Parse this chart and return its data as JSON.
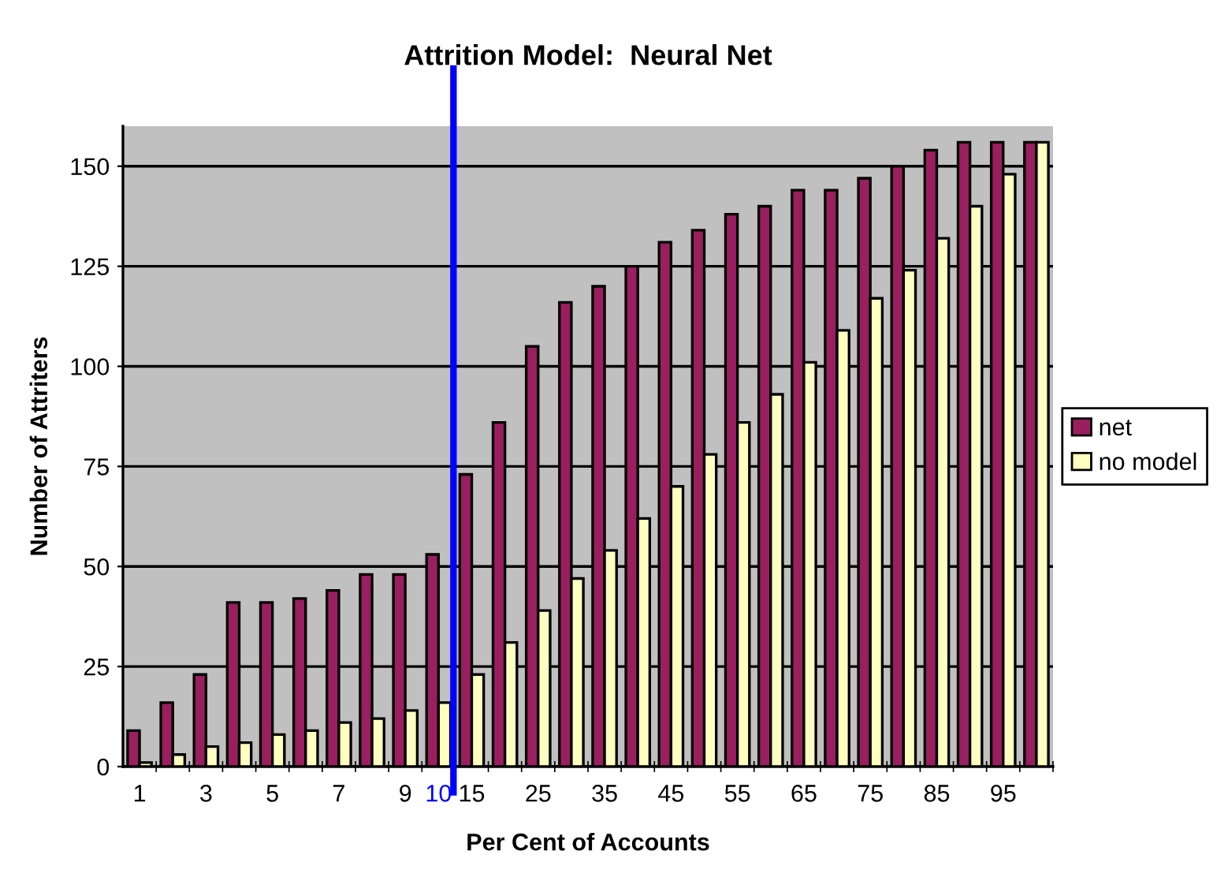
{
  "chart_data": {
    "type": "bar",
    "title": "Attrition Model:  Neural Net",
    "xlabel": "Per Cent of Accounts",
    "ylabel": "Number of Attriters",
    "categories": [
      "1",
      null,
      "3",
      null,
      "5",
      null,
      "7",
      null,
      "9",
      "10",
      "15",
      null,
      "25",
      null,
      "35",
      null,
      "45",
      null,
      "55",
      null,
      "65",
      null,
      "75",
      null,
      "85",
      null,
      "95",
      null
    ],
    "series": [
      {
        "name": "net",
        "color": "#991f5e",
        "values": [
          9,
          16,
          23,
          41,
          41,
          42,
          44,
          48,
          48,
          53,
          73,
          86,
          105,
          116,
          120,
          125,
          131,
          134,
          138,
          140,
          144,
          144,
          147,
          150,
          154,
          156,
          156,
          156
        ]
      },
      {
        "name": "no model",
        "color": "#ffffc0",
        "values": [
          1,
          3,
          5,
          6,
          8,
          9,
          11,
          12,
          14,
          16,
          23,
          31,
          39,
          47,
          54,
          62,
          70,
          78,
          86,
          93,
          101,
          109,
          117,
          124,
          132,
          140,
          148,
          156
        ]
      }
    ],
    "ylim": [
      0,
      160
    ],
    "yticks": [
      0,
      25,
      50,
      75,
      100,
      125,
      150
    ],
    "grid": "y",
    "legend": "right",
    "ref_lines": [
      {
        "axis": "x",
        "value": "10",
        "color": "#0000ff"
      }
    ]
  }
}
